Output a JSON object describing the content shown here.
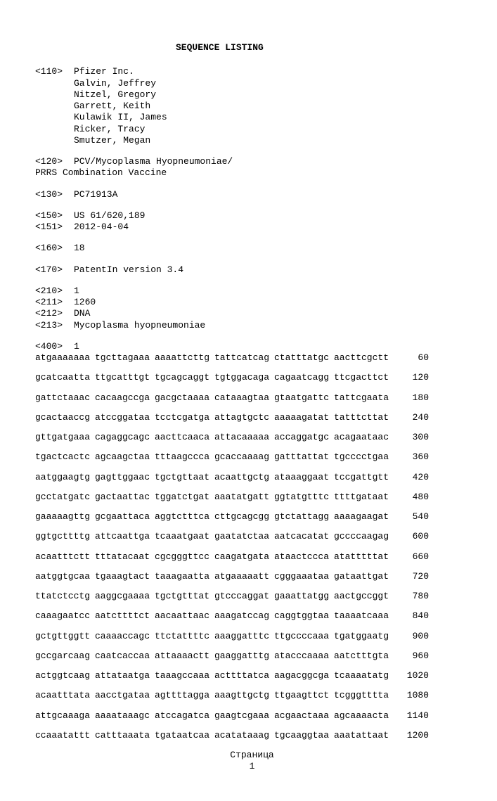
{
  "title": "SEQUENCE LISTING",
  "header": {
    "tag110": "<110>",
    "applicant": "Pfizer Inc.",
    "inventors": [
      "Galvin, Jeffrey",
      "Nitzel, Gregory",
      "Garrett, Keith",
      "Kulawik II, James",
      "Ricker, Tracy",
      "Smutzer, Megan"
    ],
    "tag120": "<120>",
    "title120_1": "PCV/Mycoplasma Hyopneumoniae/",
    "title120_2": "PRRS Combination Vaccine",
    "tag130": "<130>",
    "val130": "PC71913A",
    "tag150": "<150>",
    "val150": "US 61/620,189",
    "tag151": "<151>",
    "val151": "2012-04-04",
    "tag160": "<160>",
    "val160": "18",
    "tag170": "<170>",
    "val170": "PatentIn version 3.4",
    "tag210": "<210>",
    "val210": "1",
    "tag211": "<211>",
    "val211": "1260",
    "tag212": "<212>",
    "val212": "DNA",
    "tag213": "<213>",
    "val213": "Mycoplasma hyopneumoniae",
    "tag400": "<400>",
    "val400": "1"
  },
  "sequence": [
    {
      "b": [
        "atgaaaaaaa",
        "tgcttagaaa",
        "aaaattcttg",
        "tattcatcag",
        "ctatttatgc",
        "aacttcgctt"
      ],
      "n": "60"
    },
    {
      "b": [
        "gcatcaatta",
        "ttgcatttgt",
        "tgcagcaggt",
        "tgtggacaga",
        "cagaatcagg",
        "ttcgacttct"
      ],
      "n": "120"
    },
    {
      "b": [
        "gattctaaac",
        "cacaagccga",
        "gacgctaaaa",
        "cataaagtaa",
        "gtaatgattc",
        "tattcgaata"
      ],
      "n": "180"
    },
    {
      "b": [
        "gcactaaccg",
        "atccggataa",
        "tcctcgatga",
        "attagtgctc",
        "aaaaagatat",
        "tatttcttat"
      ],
      "n": "240"
    },
    {
      "b": [
        "gttgatgaaa",
        "cagaggcagc",
        "aacttcaaca",
        "attacaaaaa",
        "accaggatgc",
        "acagaataac"
      ],
      "n": "300"
    },
    {
      "b": [
        "tgactcactc",
        "agcaagctaa",
        "tttaagccca",
        "gcaccaaaag",
        "gatttattat",
        "tgcccctgaa"
      ],
      "n": "360"
    },
    {
      "b": [
        "aatggaagtg",
        "gagttggaac",
        "tgctgttaat",
        "acaattgctg",
        "ataaaggaat",
        "tccgattgtt"
      ],
      "n": "420"
    },
    {
      "b": [
        "gcctatgatc",
        "gactaattac",
        "tggatctgat",
        "aaatatgatt",
        "ggtatgtttc",
        "ttttgataat"
      ],
      "n": "480"
    },
    {
      "b": [
        "gaaaaagttg",
        "gcgaattaca",
        "aggtctttca",
        "cttgcagcgg",
        "gtctattagg",
        "aaaagaagat"
      ],
      "n": "540"
    },
    {
      "b": [
        "ggtgcttttg",
        "attcaattga",
        "tcaaatgaat",
        "gaatatctaa",
        "aatcacatat",
        "gccccaagag"
      ],
      "n": "600"
    },
    {
      "b": [
        "acaatttctt",
        "tttatacaat",
        "cgcgggttcc",
        "caagatgata",
        "ataactccca",
        "atatttttat"
      ],
      "n": "660"
    },
    {
      "b": [
        "aatggtgcaa",
        "tgaaagtact",
        "taaagaatta",
        "atgaaaaatt",
        "cgggaaataa",
        "gataattgat"
      ],
      "n": "720"
    },
    {
      "b": [
        "ttatctcctg",
        "aaggcgaaaa",
        "tgctgtttat",
        "gtcccaggat",
        "gaaattatgg",
        "aactgccggt"
      ],
      "n": "780"
    },
    {
      "b": [
        "caaagaatcc",
        "aatcttttct",
        "aacaattaac",
        "aaagatccag",
        "caggtggtaa",
        "taaaatcaaa"
      ],
      "n": "840"
    },
    {
      "b": [
        "gctgttggtt",
        "caaaaccagc",
        "ttctattttc",
        "aaaggatttc",
        "ttgccccaaa",
        "tgatggaatg"
      ],
      "n": "900"
    },
    {
      "b": [
        "gccgarcaag",
        "caatcaccaa",
        "attaaaactt",
        "gaaggatttg",
        "atacccaaaa",
        "aatctttgta"
      ],
      "n": "960"
    },
    {
      "b": [
        "actggtcaag",
        "attataatga",
        "taaagccaaa",
        "acttttatca",
        "aagacggcga",
        "tcaaaatatg"
      ],
      "n": "1020"
    },
    {
      "b": [
        "acaatttata",
        "aacctgataa",
        "agttttagga",
        "aaagttgctg",
        "ttgaagttct",
        "tcgggtttta"
      ],
      "n": "1080"
    },
    {
      "b": [
        "attgcaaaga",
        "aaaataaagc",
        "atccagatca",
        "gaagtcgaaa",
        "acgaactaaa",
        "agcaaaacta"
      ],
      "n": "1140"
    },
    {
      "b": [
        "ccaaatattt",
        "catttaaata",
        "tgataatcaa",
        "acatataaag",
        "tgcaaggtaa",
        "aaatattaat"
      ],
      "n": "1200"
    }
  ],
  "footer": {
    "label": "Страница",
    "num": "1"
  }
}
